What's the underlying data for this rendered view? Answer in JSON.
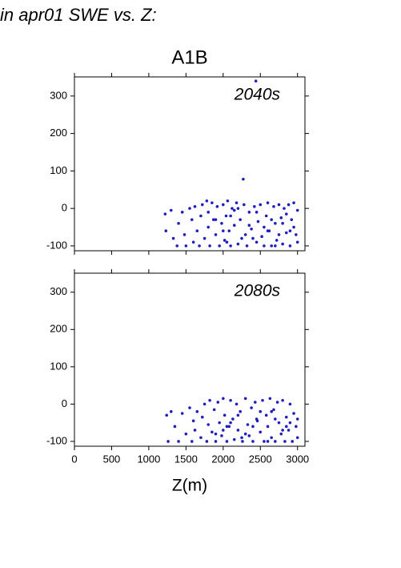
{
  "title": "in apr01 SWE vs. Z:",
  "chart_data": [
    {
      "type": "scatter",
      "title": "A1B",
      "annotation": "2040s",
      "color": "#1f1fbf",
      "xlim": [
        0,
        3100
      ],
      "ylim": [
        -113,
        351
      ],
      "yticks": [
        -100,
        0,
        100,
        200,
        300
      ],
      "x": [
        1220,
        1230,
        1300,
        1330,
        1380,
        1400,
        1450,
        1480,
        1500,
        1550,
        1580,
        1600,
        1620,
        1650,
        1680,
        1700,
        1720,
        1750,
        1780,
        1800,
        1820,
        1850,
        1870,
        1900,
        1920,
        1950,
        1980,
        2000,
        2020,
        2040,
        2060,
        2080,
        2100,
        2120,
        2150,
        2180,
        2200,
        2230,
        2270,
        2280,
        2300,
        2320,
        2350,
        2380,
        2420,
        2440,
        2450,
        2470,
        2500,
        2520,
        2550,
        2580,
        2600,
        2620,
        2650,
        2680,
        2700,
        2720,
        2750,
        2780,
        2800,
        2820,
        2850,
        2880,
        2900,
        2920,
        2950,
        2980,
        3000,
        3000,
        2000,
        2050,
        2150,
        2250,
        2350,
        2450,
        2550,
        2650,
        2750,
        2850,
        2950,
        1800,
        1900,
        2100,
        2200,
        2400,
        2600,
        2700,
        2800,
        2900
      ],
      "values": [
        -15,
        -60,
        -5,
        -80,
        -100,
        -40,
        -10,
        -70,
        -100,
        0,
        -30,
        -90,
        5,
        -60,
        -100,
        -20,
        10,
        -80,
        20,
        -50,
        -100,
        15,
        -30,
        -70,
        5,
        -100,
        -40,
        10,
        -85,
        -20,
        20,
        -60,
        -100,
        0,
        -45,
        15,
        -95,
        -30,
        78,
        10,
        -70,
        -100,
        -10,
        -55,
        5,
        340,
        -90,
        -35,
        10,
        -75,
        -100,
        -20,
        15,
        -60,
        -100,
        5,
        -40,
        -85,
        10,
        -25,
        -95,
        0,
        -65,
        10,
        -100,
        -30,
        15,
        -70,
        -5,
        -90,
        -60,
        -90,
        -5,
        -80,
        -45,
        -10,
        -50,
        -30,
        -70,
        -15,
        -50,
        -10,
        -30,
        -20,
        0,
        -80,
        -60,
        -100,
        -40,
        -60
      ]
    },
    {
      "type": "scatter",
      "annotation": "2080s",
      "color": "#1f1fbf",
      "xlabel": "Z(m)",
      "xlim": [
        0,
        3100
      ],
      "ylim": [
        -113,
        351
      ],
      "yticks": [
        -100,
        0,
        100,
        200,
        300
      ],
      "xticks": [
        0,
        500,
        1000,
        1500,
        2000,
        2500,
        3000
      ],
      "x": [
        1240,
        1260,
        1300,
        1350,
        1400,
        1450,
        1500,
        1550,
        1580,
        1600,
        1620,
        1650,
        1700,
        1720,
        1750,
        1780,
        1800,
        1820,
        1850,
        1880,
        1900,
        1930,
        1950,
        1980,
        2000,
        2020,
        2050,
        2080,
        2100,
        2130,
        2150,
        2180,
        2200,
        2230,
        2260,
        2300,
        2330,
        2350,
        2380,
        2400,
        2430,
        2460,
        2500,
        2530,
        2550,
        2580,
        2600,
        2630,
        2650,
        2680,
        2700,
        2730,
        2750,
        2780,
        2800,
        2830,
        2850,
        2880,
        2900,
        2930,
        2950,
        2980,
        3000,
        3000,
        2000,
        2100,
        2200,
        2300,
        2400,
        2500,
        2600,
        2700,
        2800,
        2900,
        1900,
        2050,
        2250,
        2450,
        2650,
        2850
      ],
      "values": [
        -30,
        -100,
        -20,
        -60,
        -100,
        -25,
        -80,
        -10,
        -100,
        -45,
        -70,
        -20,
        -90,
        -35,
        0,
        -100,
        -55,
        10,
        -75,
        -15,
        -100,
        5,
        -50,
        -85,
        15,
        -30,
        -100,
        -60,
        10,
        -40,
        -95,
        0,
        -70,
        -20,
        -100,
        15,
        -55,
        -85,
        -10,
        -100,
        5,
        -45,
        -75,
        10,
        -100,
        -30,
        -60,
        15,
        -90,
        -15,
        -100,
        5,
        -50,
        -80,
        10,
        -100,
        -35,
        -70,
        0,
        -100,
        -25,
        -60,
        -40,
        -90,
        -70,
        -50,
        -30,
        -80,
        -60,
        -20,
        -100,
        -40,
        -70,
        -50,
        -80,
        -60,
        -90,
        -40,
        -20,
        -60
      ]
    }
  ]
}
